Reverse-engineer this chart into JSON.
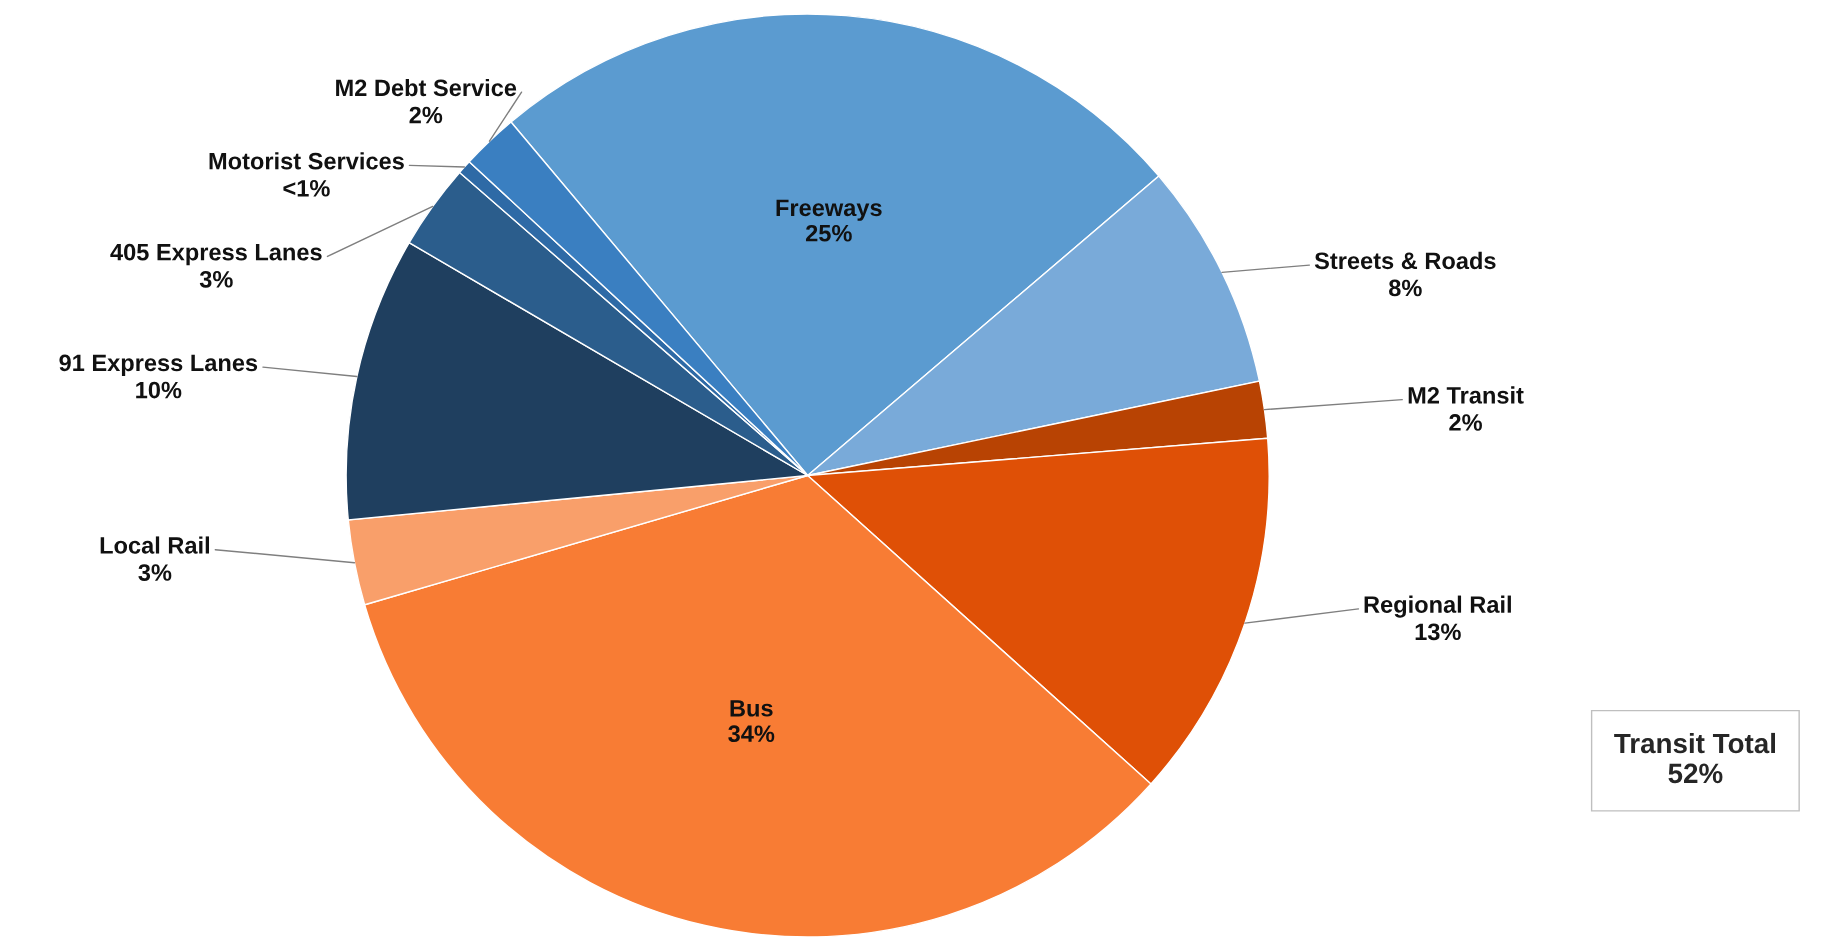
{
  "chart_data": {
    "type": "pie",
    "categories": [
      "Freeways",
      "Streets & Roads",
      "M2 Transit",
      "Regional Rail",
      "Bus",
      "Local Rail",
      "91 Express Lanes",
      "405 Express Lanes",
      "Motorist Services",
      "M2 Debt Service"
    ],
    "values": [
      25,
      8,
      2,
      13,
      34,
      3,
      10,
      3,
      0.5,
      2
    ],
    "value_labels": [
      "25%",
      "8%",
      "2%",
      "13%",
      "34%",
      "3%",
      "10%",
      "3%",
      "<1%",
      "2%"
    ],
    "colors": [
      "#5b9bd0",
      "#79aad9",
      "#b84303",
      "#df5006",
      "#f87c34",
      "#f99f6a",
      "#1f3f5f",
      "#2b5d8c",
      "#2e6aa6",
      "#3a7fc1"
    ],
    "annotations": [
      "Transit Total\n52%"
    ]
  }
}
